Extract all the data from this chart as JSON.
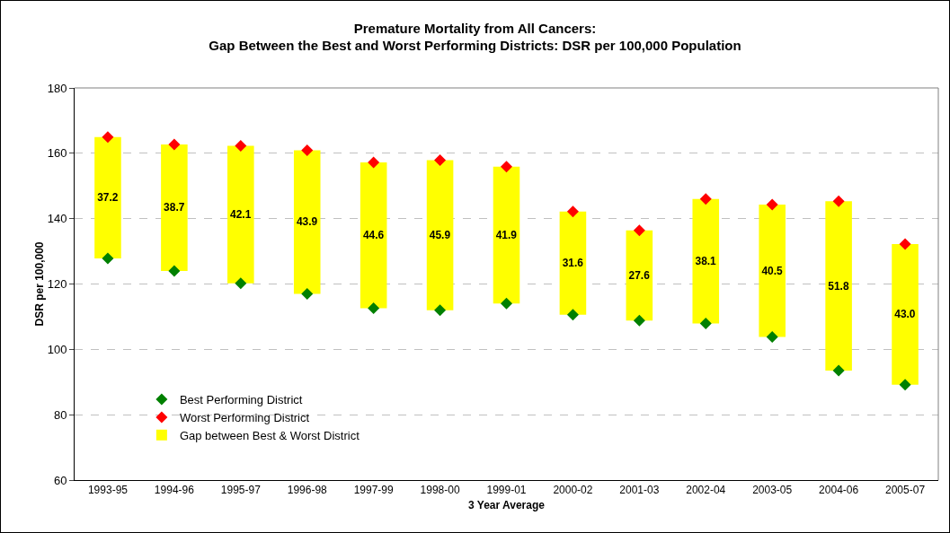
{
  "chart_data": {
    "type": "bar",
    "title": "Premature Mortality from All Cancers:\nGap Between the Best and Worst Performing Districts: DSR per 100,000 Population",
    "xlabel": "3 Year Average",
    "ylabel": "DSR per 100,000",
    "categories": [
      "1993-95",
      "1994-96",
      "1995-97",
      "1996-98",
      "1997-99",
      "1998-00",
      "1999-01",
      "2000-02",
      "2001-03",
      "2002-04",
      "2003-05",
      "2004-06",
      "2005-07"
    ],
    "series": [
      {
        "type": "scatter",
        "name": "Best Performing District",
        "color": "#008000",
        "values": [
          127.8,
          124.0,
          120.2,
          117.0,
          112.6,
          112.0,
          114.0,
          110.6,
          108.8,
          107.9,
          103.8,
          93.5,
          89.2
        ]
      },
      {
        "type": "scatter",
        "name": "Worst Performing District",
        "color": "#ff0000",
        "values": [
          165.0,
          162.7,
          162.3,
          160.9,
          157.2,
          157.9,
          155.9,
          142.2,
          136.4,
          146.0,
          144.3,
          145.3,
          132.2
        ]
      },
      {
        "name": "Gap between Best & Worst District",
        "color": "#ffff00",
        "base": [
          127.8,
          124.0,
          120.2,
          117.0,
          112.6,
          112.0,
          114.0,
          110.6,
          108.8,
          107.9,
          103.8,
          93.5,
          89.2
        ],
        "values": [
          37.2,
          38.7,
          42.1,
          43.9,
          44.6,
          45.9,
          41.9,
          31.6,
          27.6,
          38.1,
          40.5,
          51.8,
          43.0
        ],
        "value_labels": [
          "37.2",
          "38.7",
          "42.1",
          "43.9",
          "44.6",
          "45.9",
          "41.9",
          "31.6",
          "27.6",
          "38.1",
          "40.5",
          "51.8",
          "43.0"
        ]
      }
    ],
    "ylim": [
      60,
      180
    ],
    "yticks": [
      60,
      80,
      100,
      120,
      140,
      160,
      180
    ],
    "grid": "y",
    "legend": "bottom left",
    "marker": "diamond"
  }
}
